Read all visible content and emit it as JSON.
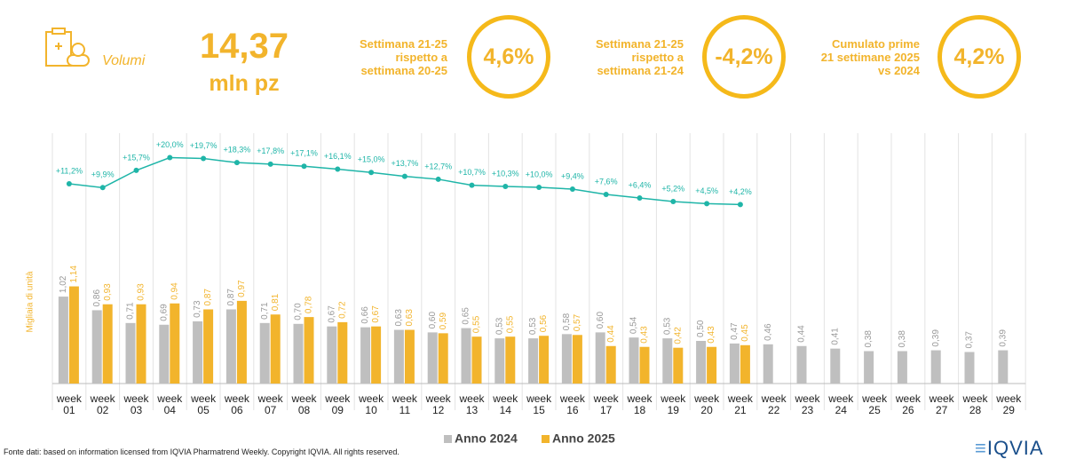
{
  "header": {
    "label": "Volumi",
    "value": "14,37",
    "unit": "mln pz"
  },
  "kpis": [
    {
      "text": "Settimana 21-25 rispetto a settimana 20-25",
      "value": "4,6%"
    },
    {
      "text": "Settimana 21-25 rispetto a settimana 21-24",
      "value": "-4,2%"
    },
    {
      "text": "Cumulato prime 21 settimane 2025 vs 2024",
      "value": "4,2%"
    }
  ],
  "footer": "Fonte dati: based on information licensed from IQVIA Pharmatrend Weekly. Copyright IQVIA. All rights reserved.",
  "logo": "IQVIA",
  "chart_data": {
    "type": "bar",
    "y_label": "Migliaia di unità",
    "categories": [
      "week 01",
      "week 02",
      "week 03",
      "week 04",
      "week 05",
      "week 06",
      "week 07",
      "week 08",
      "week 09",
      "week 10",
      "week 11",
      "week 12",
      "week 13",
      "week 14",
      "week 15",
      "week 16",
      "week 17",
      "week 18",
      "week 19",
      "week 20",
      "week 21",
      "week 22",
      "week 23",
      "week 24",
      "week 25",
      "week 26",
      "week 27",
      "week 28",
      "week 29"
    ],
    "ylim": [
      0,
      3
    ],
    "y2lim": [
      -56,
      30
    ],
    "series": [
      {
        "name": "Anno 2024",
        "color": "#bfbfbf",
        "values": [
          1.02,
          0.86,
          0.71,
          0.69,
          0.73,
          0.87,
          0.71,
          0.7,
          0.67,
          0.66,
          0.63,
          0.6,
          0.65,
          0.53,
          0.53,
          0.58,
          0.6,
          0.54,
          0.53,
          0.5,
          0.47,
          0.46,
          0.44,
          0.41,
          0.38,
          0.38,
          0.39,
          0.37,
          0.39
        ],
        "value_labels": [
          "1,02",
          "0,86",
          "0,71",
          "0,69",
          "0,73",
          "0,87",
          "0,71",
          "0,70",
          "0,67",
          "0,66",
          "0,63",
          "0,60",
          "0,65",
          "0,53",
          "0,53",
          "0,58",
          "0,60",
          "0,54",
          "0,53",
          "0,50",
          "0,47",
          "0,46",
          "0,44",
          "0,41",
          "0,38",
          "0,38",
          "0,39",
          "0,37",
          "0,39"
        ]
      },
      {
        "name": "Anno 2025",
        "color": "#f2b42c",
        "values": [
          1.14,
          0.93,
          0.93,
          0.94,
          0.87,
          0.97,
          0.81,
          0.78,
          0.72,
          0.67,
          0.63,
          0.59,
          0.55,
          0.55,
          0.56,
          0.57,
          0.44,
          0.43,
          0.42,
          0.43,
          0.45,
          null,
          null,
          null,
          null,
          null,
          null,
          null,
          null
        ],
        "value_labels": [
          "1,14",
          "0,93",
          "0,93",
          "0,94",
          "0,87",
          "0,97",
          "0,81",
          "0,78",
          "0,72",
          "0,67",
          "0,63",
          "0,59",
          "0,55",
          "0,55",
          "0,56",
          "0,57",
          "0,44",
          "0,43",
          "0,42",
          "0,43",
          "0,45",
          null,
          null,
          null,
          null,
          null,
          null,
          null,
          null
        ]
      },
      {
        "type": "line",
        "axis": "y2",
        "color": "#1fb5a8",
        "values": [
          11.2,
          9.9,
          15.7,
          20.0,
          19.7,
          18.3,
          17.8,
          17.1,
          16.1,
          15.0,
          13.7,
          12.7,
          10.7,
          10.3,
          10.0,
          9.4,
          7.6,
          6.4,
          5.2,
          4.5,
          4.2,
          null,
          null,
          null,
          null,
          null,
          null,
          null,
          null
        ],
        "value_labels": [
          "+11,2%",
          "+9,9%",
          "+15,7%",
          "+20,0%",
          "+19,7%",
          "+18,3%",
          "+17,8%",
          "+17,1%",
          "+16,1%",
          "+15,0%",
          "+13,7%",
          "+12,7%",
          "+10,7%",
          "+10,3%",
          "+10,0%",
          "+9,4%",
          "+7,6%",
          "+6,4%",
          "+5,2%",
          "+4,5%",
          "+4,2%",
          null,
          null,
          null,
          null,
          null,
          null,
          null,
          null
        ]
      }
    ]
  }
}
